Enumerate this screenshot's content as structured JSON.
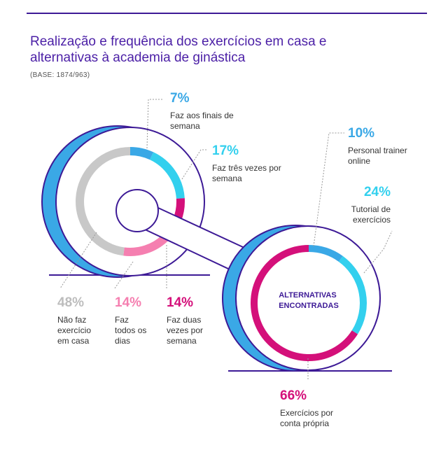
{
  "title": "Realização e frequência dos exercícios em casa e alternativas à academia de ginástica",
  "base": "(BASE: 1874/963)",
  "colors": {
    "accent_purple": "#3d1a96",
    "light_blue": "#3aa8e6",
    "cyan": "#33d0ee",
    "magenta": "#d4107a",
    "pink": "#f57fb0",
    "gray": "#c8c8c8"
  },
  "chart_data": [
    {
      "type": "pie",
      "title": "",
      "categories": [
        "Faz aos finais de semana",
        "Faz três vezes por semana",
        "Faz duas vezes por semana",
        "Faz todos os dias",
        "Não faz exercício em casa"
      ],
      "values": [
        7,
        17,
        14,
        14,
        48
      ],
      "labels": [
        "7%",
        "17%",
        "14%",
        "14%",
        "48%"
      ],
      "colors": [
        "#3aa8e6",
        "#33d0ee",
        "#d4107a",
        "#f57fb0",
        "#c8c8c8"
      ]
    },
    {
      "type": "pie",
      "title": "ALTERNATIVAS ENCONTRADAS",
      "categories": [
        "Personal trainer online",
        "Tutorial de exercícios",
        "Exercícios por conta própria"
      ],
      "values": [
        10,
        24,
        66
      ],
      "labels": [
        "10%",
        "24%",
        "66%"
      ],
      "colors": [
        "#3aa8e6",
        "#33d0ee",
        "#d4107a"
      ]
    }
  ]
}
